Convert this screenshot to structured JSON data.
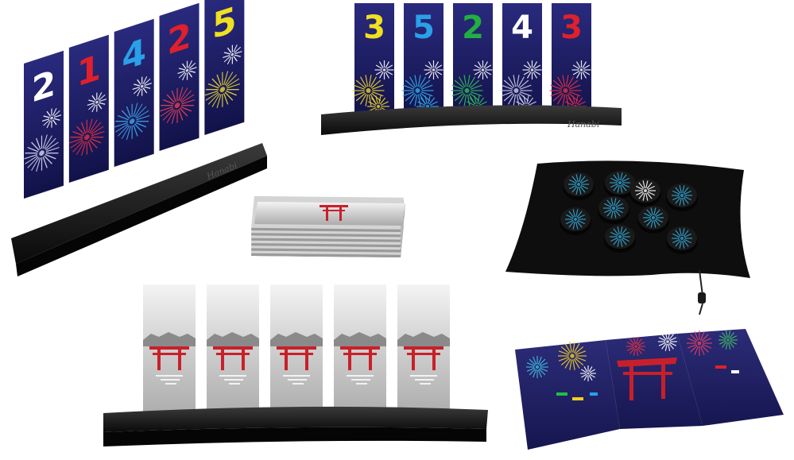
{
  "brand_label": "Hanabi",
  "left_stand": {
    "cards": [
      {
        "number": "2",
        "color": "#ffffff",
        "firework": "#d8d8f0"
      },
      {
        "number": "1",
        "color": "#e0202a",
        "firework": "#e83040"
      },
      {
        "number": "4",
        "color": "#2aa0e8",
        "firework": "#40a8e8"
      },
      {
        "number": "2",
        "color": "#e0202a",
        "firework": "#e84050"
      },
      {
        "number": "5",
        "color": "#f0e020",
        "firework": "#e8d830"
      }
    ]
  },
  "top_stand": {
    "cards": [
      {
        "number": "3",
        "color": "#f0e020",
        "firework": "#f0d820"
      },
      {
        "number": "5",
        "color": "#2aa0e8",
        "firework": "#30b0e8"
      },
      {
        "number": "2",
        "color": "#20b040",
        "firework": "#30c050"
      },
      {
        "number": "4",
        "color": "#ffffff",
        "firework": "#d0d0e8"
      },
      {
        "number": "3",
        "color": "#e0202a",
        "firework": "#e83040"
      }
    ]
  },
  "bottom_stand": {
    "card_count": 5
  },
  "tokens": {
    "count": 8,
    "color": "#30a8d8"
  },
  "colors": {
    "card_bg": "#1c1c6a",
    "card_bg_light": "#34348a",
    "stand": "#141414",
    "torii": "#c8202a",
    "card_back": "#b8b8b8"
  }
}
